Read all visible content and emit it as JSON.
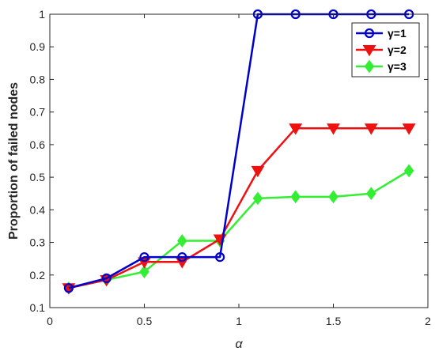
{
  "chart_data": {
    "type": "line",
    "title": "",
    "xlabel": "α",
    "ylabel": "Proportion of failed nodes",
    "xlim": [
      0,
      2
    ],
    "ylim": [
      0.1,
      1
    ],
    "x_ticks": [
      0,
      0.5,
      1,
      1.5,
      2
    ],
    "x_tick_labels": [
      "0",
      "0.5",
      "1",
      "1.5",
      "2"
    ],
    "y_ticks": [
      0.1,
      0.2,
      0.3,
      0.4,
      0.5,
      0.6,
      0.7,
      0.8,
      0.9,
      1
    ],
    "y_tick_labels": [
      "0.1",
      "0.2",
      "0.3",
      "0.4",
      "0.5",
      "0.6",
      "0.7",
      "0.8",
      "0.9",
      "1"
    ],
    "grid": false,
    "legend_position": "top-right",
    "series": [
      {
        "name": "γ=1",
        "color": "#0000cc",
        "marker": "circle",
        "x": [
          0.1,
          0.3,
          0.5,
          0.7,
          0.9,
          1.1,
          1.3,
          1.5,
          1.7,
          1.9
        ],
        "y": [
          0.16,
          0.19,
          0.255,
          0.255,
          0.255,
          1.0,
          1.0,
          1.0,
          1.0,
          1.0
        ]
      },
      {
        "name": "γ=2",
        "color": "#ee1111",
        "marker": "triangle-down",
        "x": [
          0.1,
          0.3,
          0.5,
          0.7,
          0.9,
          1.1,
          1.3,
          1.5,
          1.7,
          1.9
        ],
        "y": [
          0.16,
          0.185,
          0.24,
          0.24,
          0.31,
          0.52,
          0.65,
          0.65,
          0.65,
          0.65
        ]
      },
      {
        "name": "γ=3",
        "color": "#33ee33",
        "marker": "diamond",
        "x": [
          0.1,
          0.3,
          0.5,
          0.7,
          0.9,
          1.1,
          1.3,
          1.5,
          1.7,
          1.9
        ],
        "y": [
          0.16,
          0.185,
          0.21,
          0.305,
          0.305,
          0.435,
          0.44,
          0.44,
          0.45,
          0.52
        ]
      }
    ]
  }
}
